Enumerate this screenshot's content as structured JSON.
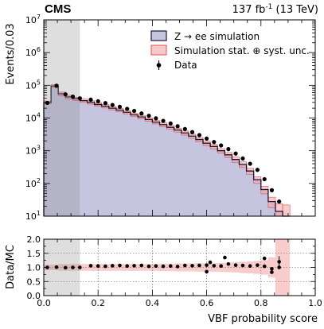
{
  "header": {
    "experiment": "CMS",
    "lumi": "137 fb",
    "lumi_exp": "-1",
    "energy": " (13 TeV)"
  },
  "colors": {
    "sim_fill": "#c6c5e0",
    "sim_line": "#1a1633",
    "unc_fill": "#f4a3a3",
    "unc_line": "#e05050",
    "cr_shade": "#888888",
    "data": "#000000"
  },
  "chart_data": [
    {
      "type": "bar",
      "panel": "main",
      "ylabel": "Events/0.03",
      "yscale": "log",
      "ylim": [
        10,
        10000000
      ],
      "xlim": [
        0.0,
        1.0
      ],
      "yticks": [
        {
          "base": "10",
          "exp": "1",
          "value": 10
        },
        {
          "base": "10",
          "exp": "2",
          "value": 100
        },
        {
          "base": "10",
          "exp": "3",
          "value": 1000
        },
        {
          "base": "10",
          "exp": "4",
          "value": 10000
        },
        {
          "base": "10",
          "exp": "5",
          "value": 100000
        },
        {
          "base": "10",
          "exp": "6",
          "value": 1000000
        },
        {
          "base": "10",
          "exp": "7",
          "value": 10000000
        }
      ],
      "shaded_region": [
        0.0,
        0.133
      ],
      "bin_edges": [
        0.0,
        0.0267,
        0.0533,
        0.08,
        0.1067,
        0.1333,
        0.16,
        0.1867,
        0.2133,
        0.24,
        0.2667,
        0.2933,
        0.32,
        0.3467,
        0.3733,
        0.4,
        0.4267,
        0.4533,
        0.48,
        0.5067,
        0.5333,
        0.56,
        0.5867,
        0.6133,
        0.64,
        0.6667,
        0.6933,
        0.72,
        0.7467,
        0.7733,
        0.8,
        0.8267,
        0.8533,
        0.88,
        0.9067
      ],
      "simulation": [
        30000,
        95000,
        55000,
        44000,
        39000,
        34000,
        30000,
        26000,
        23000,
        20000,
        17500,
        15000,
        12500,
        10800,
        9000,
        7500,
        6300,
        5200,
        4300,
        3500,
        2800,
        2200,
        1700,
        1350,
        1000,
        750,
        540,
        380,
        240,
        130,
        65,
        28,
        14,
        10
      ],
      "unc_low": [
        27000,
        85000,
        48000,
        38500,
        34500,
        30000,
        26500,
        23000,
        20300,
        17600,
        15400,
        13200,
        11000,
        9500,
        7900,
        6600,
        5500,
        4500,
        3700,
        3000,
        2400,
        1870,
        1440,
        1140,
        840,
        620,
        440,
        305,
        190,
        100,
        48,
        18,
        8,
        10
      ],
      "unc_high": [
        33000,
        105000,
        62000,
        49500,
        43500,
        38000,
        33500,
        29000,
        25700,
        22400,
        19600,
        16800,
        14000,
        12100,
        10100,
        8400,
        7100,
        5900,
        4900,
        4000,
        3200,
        2530,
        1960,
        1560,
        1160,
        880,
        640,
        455,
        290,
        160,
        82,
        38,
        24,
        22
      ],
      "data_points": [
        {
          "x": 0.013,
          "y": 29000
        },
        {
          "x": 0.047,
          "y": 97000
        },
        {
          "x": 0.08,
          "y": 53000
        },
        {
          "x": 0.107,
          "y": 45000
        },
        {
          "x": 0.133,
          "y": 40000
        },
        {
          "x": 0.173,
          "y": 36500
        },
        {
          "x": 0.2,
          "y": 32500
        },
        {
          "x": 0.227,
          "y": 28500
        },
        {
          "x": 0.253,
          "y": 25000
        },
        {
          "x": 0.28,
          "y": 22000
        },
        {
          "x": 0.307,
          "y": 19000
        },
        {
          "x": 0.333,
          "y": 16500
        },
        {
          "x": 0.36,
          "y": 13800
        },
        {
          "x": 0.387,
          "y": 11700
        },
        {
          "x": 0.413,
          "y": 9800
        },
        {
          "x": 0.44,
          "y": 8200
        },
        {
          "x": 0.467,
          "y": 6800
        },
        {
          "x": 0.493,
          "y": 5600
        },
        {
          "x": 0.52,
          "y": 4600
        },
        {
          "x": 0.547,
          "y": 3700
        },
        {
          "x": 0.573,
          "y": 3000
        },
        {
          "x": 0.6,
          "y": 2350
        },
        {
          "x": 0.627,
          "y": 1850
        },
        {
          "x": 0.653,
          "y": 1450
        },
        {
          "x": 0.68,
          "y": 1120
        },
        {
          "x": 0.707,
          "y": 820
        },
        {
          "x": 0.733,
          "y": 580
        },
        {
          "x": 0.76,
          "y": 400
        },
        {
          "x": 0.787,
          "y": 260
        },
        {
          "x": 0.813,
          "y": 135
        },
        {
          "x": 0.84,
          "y": 62
        },
        {
          "x": 0.867,
          "y": 28
        }
      ],
      "legend": {
        "placement": "upper-right",
        "entries": [
          {
            "prefix": "Z ",
            "arrow": "→",
            "suffix": " ee simulation"
          },
          {
            "prefix": "Simulation stat. ",
            "arrow": "⊕",
            "suffix": " syst. unc."
          },
          {
            "prefix": "Data",
            "arrow": "",
            "suffix": ""
          }
        ]
      }
    },
    {
      "type": "scatter",
      "panel": "ratio",
      "ylabel": "Data/MC",
      "xlabel": "VBF probability score",
      "ylim": [
        0.0,
        2.0
      ],
      "xlim": [
        0.0,
        1.0
      ],
      "yticks": [
        "0.0",
        "0.5",
        "1.0",
        "1.5",
        "2.0"
      ],
      "xticks": [
        "0.0",
        "0.2",
        "0.4",
        "0.6",
        "0.8",
        "1.0"
      ],
      "grid": true,
      "shaded_region": [
        0.0,
        0.133
      ],
      "bin_edges": [
        0.0,
        0.0267,
        0.0533,
        0.08,
        0.1067,
        0.1333,
        0.16,
        0.1867,
        0.2133,
        0.24,
        0.2667,
        0.2933,
        0.32,
        0.3467,
        0.3733,
        0.4,
        0.4267,
        0.4533,
        0.48,
        0.5067,
        0.5333,
        0.56,
        0.5867,
        0.6133,
        0.64,
        0.6667,
        0.6933,
        0.72,
        0.7467,
        0.7733,
        0.8,
        0.8267,
        0.8533,
        0.88,
        0.9067
      ],
      "unc_low": [
        0.9,
        0.9,
        0.88,
        0.88,
        0.88,
        0.88,
        0.88,
        0.88,
        0.88,
        0.88,
        0.88,
        0.88,
        0.88,
        0.88,
        0.88,
        0.88,
        0.87,
        0.87,
        0.86,
        0.86,
        0.86,
        0.85,
        0.85,
        0.85,
        0.84,
        0.83,
        0.82,
        0.8,
        0.79,
        0.77,
        0.74,
        0.64,
        0.0,
        0.0
      ],
      "unc_high": [
        1.1,
        1.1,
        1.12,
        1.12,
        1.12,
        1.12,
        1.12,
        1.12,
        1.12,
        1.12,
        1.12,
        1.12,
        1.12,
        1.12,
        1.12,
        1.12,
        1.13,
        1.13,
        1.14,
        1.14,
        1.14,
        1.15,
        1.15,
        1.15,
        1.16,
        1.17,
        1.18,
        1.2,
        1.21,
        1.23,
        1.26,
        1.36,
        2.0,
        2.0
      ],
      "data_points": [
        {
          "x": 0.013,
          "y": 1.0
        },
        {
          "x": 0.047,
          "y": 1.01
        },
        {
          "x": 0.08,
          "y": 0.99
        },
        {
          "x": 0.107,
          "y": 1.0
        },
        {
          "x": 0.133,
          "y": 1.0
        },
        {
          "x": 0.173,
          "y": 1.06
        },
        {
          "x": 0.2,
          "y": 1.05
        },
        {
          "x": 0.227,
          "y": 1.04
        },
        {
          "x": 0.253,
          "y": 1.06
        },
        {
          "x": 0.28,
          "y": 1.07
        },
        {
          "x": 0.307,
          "y": 1.05
        },
        {
          "x": 0.333,
          "y": 1.06
        },
        {
          "x": 0.36,
          "y": 1.07
        },
        {
          "x": 0.387,
          "y": 1.04
        },
        {
          "x": 0.413,
          "y": 1.05
        },
        {
          "x": 0.44,
          "y": 1.04
        },
        {
          "x": 0.467,
          "y": 1.05
        },
        {
          "x": 0.493,
          "y": 1.03
        },
        {
          "x": 0.52,
          "y": 1.07
        },
        {
          "x": 0.547,
          "y": 1.06
        },
        {
          "x": 0.573,
          "y": 1.07
        },
        {
          "x": 0.6,
          "y": 1.08
        },
        {
          "x": 0.627,
          "y": 1.06
        },
        {
          "x": 0.653,
          "y": 1.05
        },
        {
          "x": 0.68,
          "y": 1.12
        },
        {
          "x": 0.707,
          "y": 1.08
        },
        {
          "x": 0.733,
          "y": 1.07
        },
        {
          "x": 0.76,
          "y": 1.05
        },
        {
          "x": 0.787,
          "y": 1.08
        },
        {
          "x": 0.813,
          "y": 1.04
        },
        {
          "x": 0.84,
          "y": 0.95
        },
        {
          "x": 0.867,
          "y": 1.0
        }
      ],
      "data_points_extra": [
        {
          "x": 0.6,
          "y": 0.85
        },
        {
          "x": 0.613,
          "y": 1.18
        },
        {
          "x": 0.667,
          "y": 1.35
        },
        {
          "x": 0.813,
          "y": 1.32
        },
        {
          "x": 0.84,
          "y": 0.83
        },
        {
          "x": 0.867,
          "y": 1.2
        }
      ]
    }
  ]
}
